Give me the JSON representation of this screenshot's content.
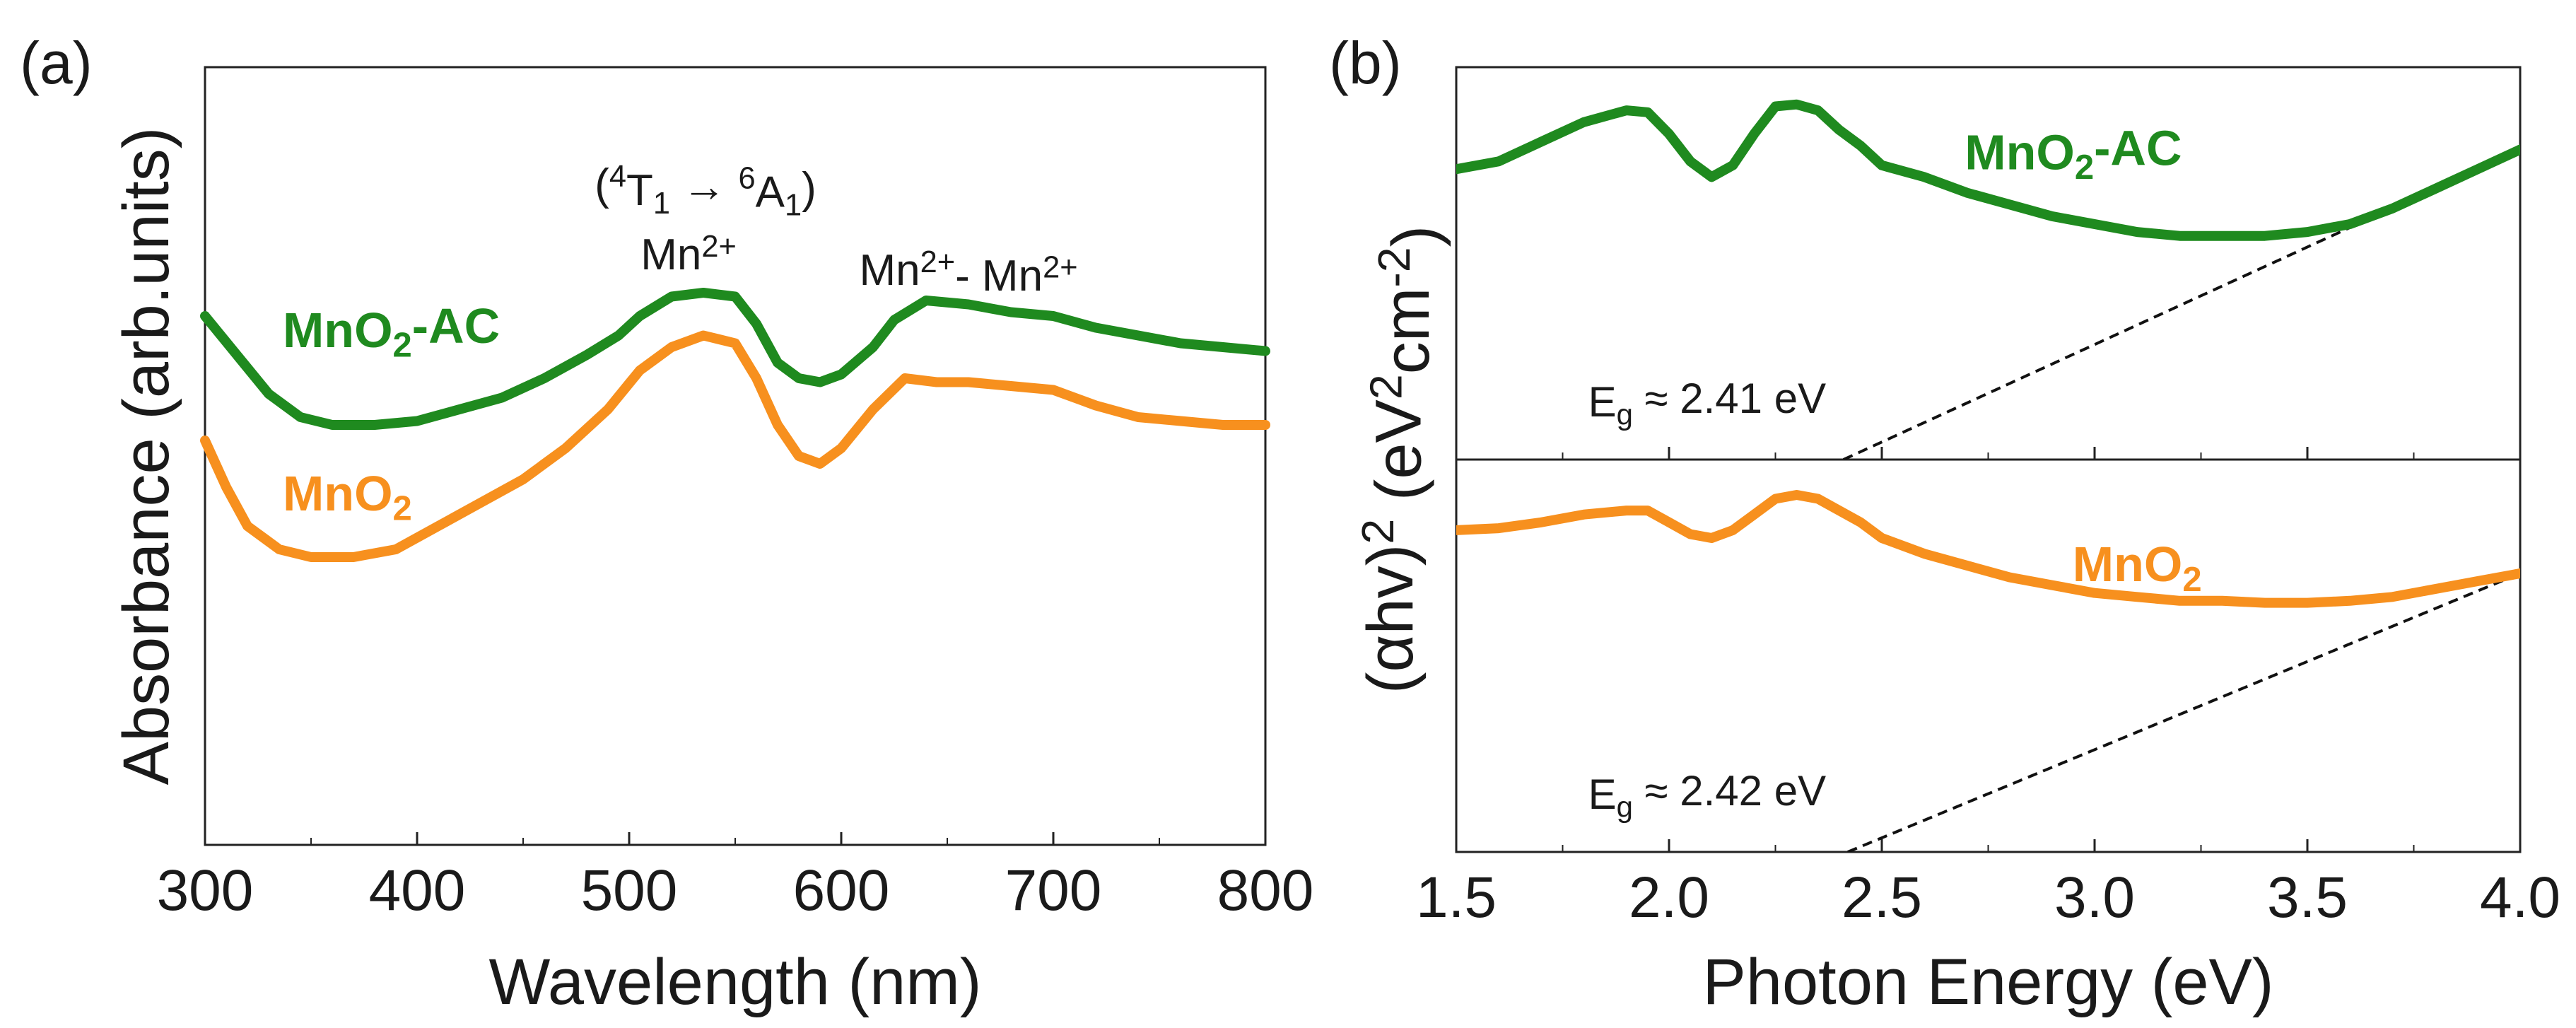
{
  "chart_data": [
    {
      "panel": "(a)",
      "type": "line",
      "xlabel": "Wavelength (nm)",
      "ylabel": "Absorbance (arb.units)",
      "xlim": [
        300,
        800
      ],
      "ylim": [
        0,
        1
      ],
      "xticks": [
        300,
        400,
        500,
        600,
        700,
        800
      ],
      "xtick_labels": [
        "300",
        "400",
        "500",
        "600",
        "700",
        "800"
      ],
      "annotations": [
        {
          "parts": [
            "(",
            "4",
            "T",
            "1",
            " → ",
            "6",
            "A",
            "1",
            ")"
          ],
          "x": 536,
          "y": 0.83
        },
        {
          "parts": [
            "Mn",
            "2+"
          ],
          "x": 528,
          "y": 0.74
        },
        {
          "parts": [
            "Mn",
            "2+",
            "- Mn",
            "2+"
          ],
          "x": 660,
          "y": 0.72
        }
      ],
      "series": [
        {
          "name": "MnO2-AC",
          "label_parts": [
            "MnO",
            "2",
            "-AC"
          ],
          "color": "#1f8a1f",
          "label_at": [
            300,
            0.64
          ],
          "x": [
            300,
            315,
            330,
            345,
            360,
            380,
            400,
            420,
            440,
            460,
            480,
            495,
            505,
            520,
            535,
            550,
            560,
            570,
            580,
            590,
            600,
            615,
            625,
            640,
            660,
            680,
            700,
            720,
            740,
            760,
            780,
            800
          ],
          "y": [
            0.68,
            0.63,
            0.58,
            0.55,
            0.54,
            0.54,
            0.545,
            0.56,
            0.575,
            0.6,
            0.63,
            0.655,
            0.68,
            0.705,
            0.71,
            0.705,
            0.67,
            0.62,
            0.6,
            0.595,
            0.605,
            0.64,
            0.675,
            0.7,
            0.695,
            0.685,
            0.68,
            0.665,
            0.655,
            0.645,
            0.64,
            0.635
          ]
        },
        {
          "name": "MnO2",
          "label_parts": [
            "MnO",
            "2"
          ],
          "color": "#f7901e",
          "label_at": [
            300,
            0.43
          ],
          "x": [
            300,
            310,
            320,
            335,
            350,
            370,
            390,
            410,
            430,
            450,
            470,
            490,
            505,
            520,
            535,
            550,
            560,
            570,
            580,
            590,
            600,
            615,
            630,
            645,
            660,
            680,
            700,
            720,
            740,
            760,
            780,
            800
          ],
          "y": [
            0.52,
            0.46,
            0.41,
            0.38,
            0.37,
            0.37,
            0.38,
            0.41,
            0.44,
            0.47,
            0.51,
            0.56,
            0.61,
            0.64,
            0.655,
            0.645,
            0.6,
            0.54,
            0.5,
            0.49,
            0.51,
            0.56,
            0.6,
            0.595,
            0.595,
            0.59,
            0.585,
            0.565,
            0.55,
            0.545,
            0.54,
            0.54
          ]
        }
      ]
    },
    {
      "panel": "(b)",
      "type": "line",
      "xlabel": "Photon Energy (eV)",
      "ylabel_parts": [
        "(αhv)",
        "2",
        " (eV",
        "2",
        "cm",
        "-2",
        ")"
      ],
      "xlim": [
        1.5,
        4.0
      ],
      "xticks": [
        1.5,
        2.0,
        2.5,
        3.0,
        3.5,
        4.0
      ],
      "xtick_labels": [
        "1.5",
        "2.0",
        "2.5",
        "3.0",
        "3.5",
        "4.0"
      ],
      "subplots": [
        {
          "name": "MnO2-AC",
          "label_parts": [
            "MnO",
            "2",
            "-AC"
          ],
          "color": "#1f8a1f",
          "ylim": [
            0,
            1
          ],
          "label_at": [
            2.95,
            0.74
          ],
          "x": [
            1.5,
            1.6,
            1.7,
            1.8,
            1.9,
            1.95,
            2.0,
            2.05,
            2.1,
            2.15,
            2.2,
            2.25,
            2.3,
            2.35,
            2.4,
            2.45,
            2.5,
            2.6,
            2.7,
            2.8,
            2.9,
            3.0,
            3.1,
            3.2,
            3.3,
            3.4,
            3.5,
            3.6,
            3.7,
            3.8,
            3.9,
            4.0
          ],
          "y": [
            0.74,
            0.76,
            0.81,
            0.86,
            0.89,
            0.885,
            0.83,
            0.76,
            0.72,
            0.75,
            0.83,
            0.9,
            0.905,
            0.89,
            0.84,
            0.8,
            0.75,
            0.72,
            0.68,
            0.65,
            0.62,
            0.6,
            0.58,
            0.57,
            0.57,
            0.57,
            0.58,
            0.6,
            0.64,
            0.69,
            0.74,
            0.79
          ],
          "fit_line": {
            "x": [
              2.41,
              4.0
            ],
            "y": [
              0.0,
              0.79
            ]
          },
          "eg_parts": [
            "E",
            "g",
            " ≈ 2.41 eV"
          ],
          "eg_at": [
            1.81,
            0.11
          ]
        },
        {
          "name": "MnO2",
          "label_parts": [
            "MnO",
            "2"
          ],
          "color": "#f7901e",
          "ylim": [
            0,
            1
          ],
          "label_at": [
            3.1,
            0.69
          ],
          "x": [
            1.5,
            1.6,
            1.7,
            1.8,
            1.9,
            1.95,
            2.0,
            2.05,
            2.1,
            2.15,
            2.2,
            2.25,
            2.3,
            2.35,
            2.4,
            2.45,
            2.5,
            2.6,
            2.7,
            2.8,
            2.9,
            3.0,
            3.1,
            3.2,
            3.3,
            3.4,
            3.5,
            3.6,
            3.7,
            3.8,
            3.9,
            4.0
          ],
          "y": [
            0.82,
            0.825,
            0.84,
            0.86,
            0.87,
            0.87,
            0.84,
            0.81,
            0.8,
            0.82,
            0.86,
            0.9,
            0.91,
            0.9,
            0.87,
            0.84,
            0.8,
            0.76,
            0.73,
            0.7,
            0.68,
            0.66,
            0.65,
            0.64,
            0.64,
            0.635,
            0.635,
            0.64,
            0.65,
            0.67,
            0.69,
            0.71
          ],
          "fit_line": {
            "x": [
              2.42,
              4.0
            ],
            "y": [
              0.0,
              0.71
            ]
          },
          "eg_parts": [
            "E",
            "g",
            " ≈ 2.42 eV"
          ],
          "eg_at": [
            1.81,
            0.11
          ]
        }
      ]
    }
  ]
}
